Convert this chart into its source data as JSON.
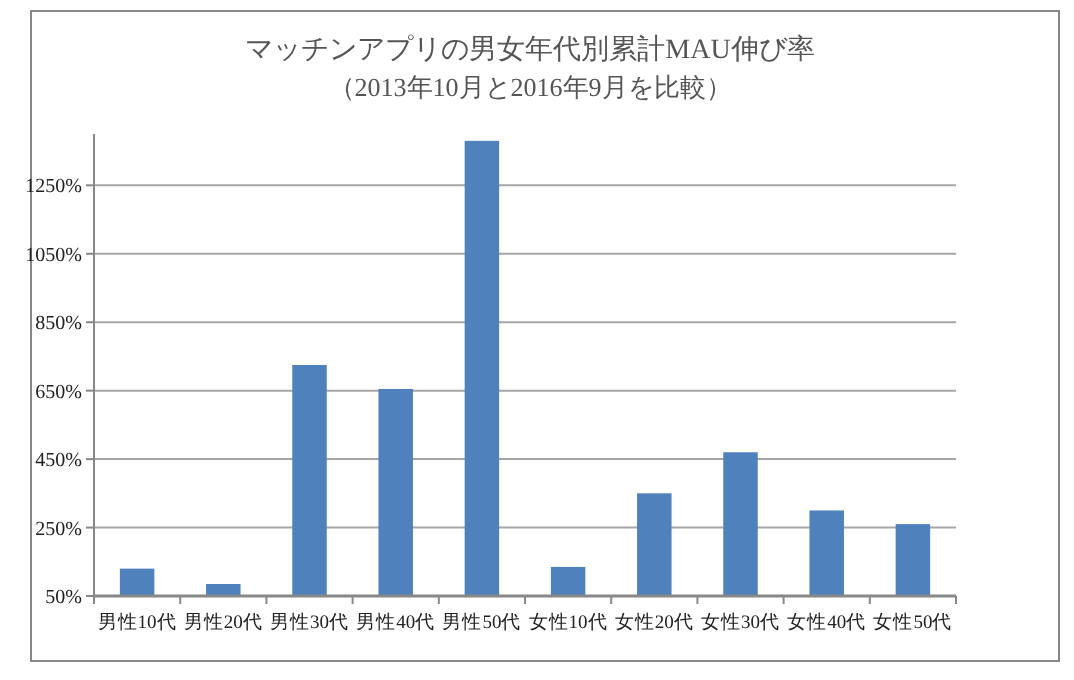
{
  "chart_data": {
    "type": "bar",
    "title": "マッチンアプリの男女年代別累計MAU伸び率",
    "subtitle": "（2013年10月と2016年9月を比較）",
    "categories": [
      "男性10代",
      "男性20代",
      "男性30代",
      "男性40代",
      "男性50代",
      "女性10代",
      "女性20代",
      "女性30代",
      "女性40代",
      "女性50代"
    ],
    "values": [
      130,
      85,
      725,
      655,
      1380,
      135,
      350,
      470,
      300,
      260
    ],
    "color": "#4f81bd",
    "ylim": [
      50,
      1400
    ],
    "yticks": [
      {
        "value": 50,
        "label": "50%"
      },
      {
        "value": 250,
        "label": "250%"
      },
      {
        "value": 450,
        "label": "450%"
      },
      {
        "value": 650,
        "label": "650%"
      },
      {
        "value": 850,
        "label": "850%"
      },
      {
        "value": 1050,
        "label": "1050%"
      },
      {
        "value": 1250,
        "label": "1250%"
      }
    ],
    "grid": "y"
  }
}
